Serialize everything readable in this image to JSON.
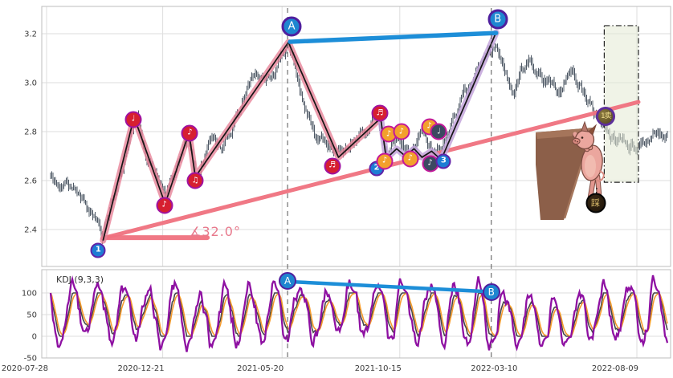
{
  "chart_data": [
    {
      "panel": "price",
      "type": "ohlc",
      "ylim": [
        2.25,
        3.31
      ],
      "y_ticks": [
        "3.2",
        "3.0",
        "2.8",
        "2.6",
        "2.4"
      ],
      "y_tick_values": [
        3.2,
        3.0,
        2.8,
        2.6,
        2.4
      ],
      "x_ticks": [
        "2020-07-28",
        "2020-12-21",
        "2021-05-20",
        "2021-10-15",
        "2022-03-10",
        "2022-08-09"
      ],
      "grid": true,
      "bar_color": "#4e5865",
      "price_path": [
        [
          "2020-08-02",
          2.62
        ],
        [
          "2020-09-01",
          2.56
        ],
        [
          "2020-09-16",
          2.48
        ],
        [
          "2020-10-06",
          2.37
        ],
        [
          "2020-10-24",
          2.58
        ],
        [
          "2020-11-18",
          2.86
        ],
        [
          "2020-12-02",
          2.7
        ],
        [
          "2020-12-24",
          2.51
        ],
        [
          "2021-01-22",
          2.79
        ],
        [
          "2021-01-31",
          2.62
        ],
        [
          "2021-02-20",
          2.78
        ],
        [
          "2021-03-05",
          2.73
        ],
        [
          "2021-03-30",
          2.93
        ],
        [
          "2021-04-17",
          3.06
        ],
        [
          "2021-04-29",
          3.0
        ],
        [
          "2021-05-14",
          3.08
        ],
        [
          "2021-05-28",
          3.16
        ],
        [
          "2021-06-12",
          2.97
        ],
        [
          "2021-06-30",
          2.8
        ],
        [
          "2021-07-18",
          2.74
        ],
        [
          "2021-07-30",
          2.69
        ],
        [
          "2021-08-20",
          2.76
        ],
        [
          "2021-09-17",
          2.85
        ],
        [
          "2021-09-28",
          2.71
        ],
        [
          "2021-10-12",
          2.77
        ],
        [
          "2021-10-27",
          2.71
        ],
        [
          "2021-11-11",
          2.79
        ],
        [
          "2021-11-26",
          2.7
        ],
        [
          "2021-12-11",
          2.77
        ],
        [
          "2022-01-01",
          2.93
        ],
        [
          "2022-01-26",
          3.09
        ],
        [
          "2022-02-13",
          3.17
        ],
        [
          "2022-03-05",
          2.97
        ],
        [
          "2022-03-26",
          3.09
        ],
        [
          "2022-04-15",
          3.02
        ],
        [
          "2022-05-05",
          2.97
        ],
        [
          "2022-05-21",
          3.06
        ],
        [
          "2022-06-10",
          2.92
        ],
        [
          "2022-07-01",
          2.8
        ],
        [
          "2022-07-22",
          2.75
        ],
        [
          "2022-08-11",
          2.73
        ],
        [
          "2022-08-31",
          2.79
        ],
        [
          "2022-09-15",
          2.76
        ]
      ],
      "wave_line": {
        "color": "#151515",
        "glow_pink": "#e78398",
        "glow_lavender": "#c3a4da",
        "glow_split_index": 7,
        "points": [
          [
            "2020-10-07",
            2.355
          ],
          [
            "2020-11-15",
            2.86
          ],
          [
            "2020-12-24",
            2.505
          ],
          [
            "2021-01-23",
            2.795
          ],
          [
            "2021-01-31",
            2.615
          ],
          [
            "2021-05-28",
            3.165
          ],
          [
            "2021-07-30",
            2.695
          ],
          [
            "2021-09-21",
            2.855
          ],
          [
            "2021-09-28",
            2.69
          ],
          [
            "2021-10-11",
            2.73
          ],
          [
            "2021-10-22",
            2.7
          ],
          [
            "2021-11-02",
            2.73
          ],
          [
            "2021-11-12",
            2.695
          ],
          [
            "2021-11-24",
            2.72
          ],
          [
            "2021-12-06",
            2.685
          ],
          [
            "2022-02-13",
            3.205
          ]
        ]
      },
      "trend_line": {
        "color": "#f0717f",
        "from": [
          "2020-10-06",
          2.364
        ],
        "to": [
          "2022-08-11",
          2.921
        ]
      },
      "angle_ray": {
        "color": "#f0717f",
        "price": 2.367,
        "from_date": "2020-10-09",
        "to_date": "2021-02-15"
      },
      "angle_label": {
        "text": "∡32.0°",
        "color": "#e8798c"
      },
      "ab_line": {
        "color": "#1d8ed8",
        "from": [
          "2021-05-30",
          3.167
        ],
        "to": [
          "2022-02-13",
          3.203
        ]
      },
      "dashed_vlines": [
        "2021-05-27",
        "2022-02-07"
      ],
      "highlight_box": {
        "from_date": "2022-06-29",
        "to_date": "2022-08-11",
        "price_top": 3.233,
        "price_bottom": 2.593,
        "fill": "#e3e9d3",
        "border": "#222222"
      },
      "markers": [
        {
          "kind": "number",
          "glyph": "1",
          "date": "2020-10-01",
          "price": 2.315
        },
        {
          "kind": "note",
          "style": "red",
          "glyph": "♩",
          "date": "2020-11-14",
          "price": 2.85
        },
        {
          "kind": "note",
          "style": "red",
          "glyph": "♪",
          "date": "2020-12-23",
          "price": 2.5
        },
        {
          "kind": "note",
          "style": "red",
          "glyph": "♪",
          "date": "2021-01-24",
          "price": 2.795
        },
        {
          "kind": "note",
          "style": "red",
          "glyph": "♫",
          "date": "2021-01-31",
          "price": 2.6
        },
        {
          "kind": "letter",
          "glyph": "A",
          "date": "2021-06-01",
          "price": 3.23
        },
        {
          "kind": "note",
          "style": "red",
          "glyph": "♬",
          "date": "2021-07-22",
          "price": 2.66
        },
        {
          "kind": "note",
          "style": "red",
          "glyph": "♬",
          "date": "2021-09-20",
          "price": 2.875
        },
        {
          "kind": "number",
          "glyph": "2",
          "date": "2021-09-16",
          "price": 2.65
        },
        {
          "kind": "note",
          "style": "orange",
          "glyph": "♪",
          "date": "2021-09-26",
          "price": 2.68
        },
        {
          "kind": "note",
          "style": "orange",
          "glyph": "♪",
          "date": "2021-10-01",
          "price": 2.79
        },
        {
          "kind": "note",
          "style": "orange",
          "glyph": "♪",
          "date": "2021-10-17",
          "price": 2.8
        },
        {
          "kind": "note",
          "style": "orange",
          "glyph": "♪",
          "date": "2021-10-28",
          "price": 2.69
        },
        {
          "kind": "note",
          "style": "orange",
          "glyph": "♪",
          "date": "2021-11-21",
          "price": 2.82
        },
        {
          "kind": "note",
          "style": "dark",
          "glyph": "♪",
          "date": "2021-11-22",
          "price": 2.67
        },
        {
          "kind": "note",
          "style": "dark",
          "glyph": "♩",
          "date": "2021-12-03",
          "price": 2.8
        },
        {
          "kind": "number",
          "glyph": "3",
          "date": "2021-12-09",
          "price": 2.68
        },
        {
          "kind": "letter",
          "glyph": "B",
          "date": "2022-02-15",
          "price": 3.26
        },
        {
          "kind": "coin_sell",
          "glyph": "1卖",
          "date": "2022-07-01",
          "price": 2.862
        },
        {
          "kind": "coin_step",
          "glyph": "踩",
          "date": "2022-06-18",
          "price": 2.508
        }
      ]
    },
    {
      "panel": "kdj",
      "type": "line",
      "label": "KDJ (9,3,3)",
      "y_ticks": [
        "100",
        "50",
        "0",
        "-50"
      ],
      "y_tick_values": [
        100,
        50,
        0,
        -50
      ],
      "ylim": [
        -50,
        155
      ],
      "series": [
        {
          "name": "K",
          "color": "#474747"
        },
        {
          "name": "D",
          "color": "#f59b2d"
        },
        {
          "name": "J",
          "color": "#8e10a2"
        }
      ],
      "ab_line": {
        "color": "#1d8ed8",
        "from": [
          "2021-05-30",
          126
        ],
        "to": [
          "2022-02-04",
          103
        ]
      },
      "markers": [
        {
          "kind": "letter",
          "glyph": "A",
          "date": "2021-05-27",
          "value": 128
        },
        {
          "kind": "letter",
          "glyph": "B",
          "date": "2022-02-07",
          "value": 102
        }
      ],
      "dashed_vlines": [
        "2021-05-27",
        "2022-02-07"
      ]
    }
  ],
  "illustrations": [
    {
      "id": "pig-cliff",
      "description": "cartoon pig climbing a brown cliff, a coin labelled 踩 hanging from it"
    }
  ]
}
